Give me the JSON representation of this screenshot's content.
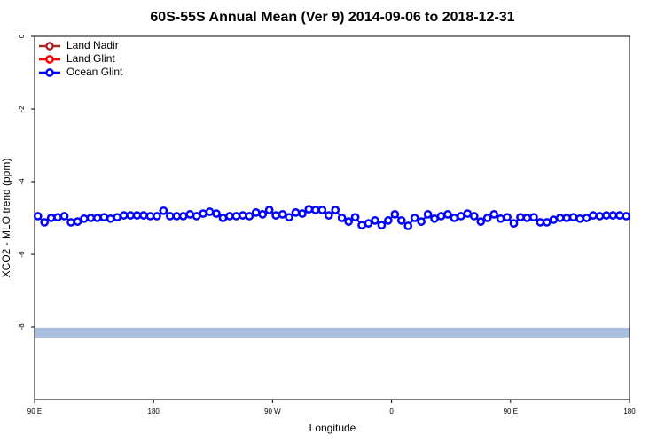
{
  "chart_data": {
    "type": "line",
    "title": "60S-55S Annual Mean (Ver 9)   2014-09-06 to 2018-12-31",
    "x_label": "Longitude",
    "y_label": "XCO2 - MLO trend (ppm)",
    "xlim": [
      90,
      540
    ],
    "ylim": [
      -10,
      0
    ],
    "xticks": [
      {
        "value": 90,
        "label": "90 E"
      },
      180,
      {
        "value": 270,
        "label": "90 W"
      },
      {
        "value": 360,
        "label": "0"
      },
      {
        "value": 450,
        "label": "90 E"
      },
      {
        "value": 540,
        "label": "180"
      }
    ],
    "yticks": [
      0,
      -2,
      -4,
      -6,
      -8
    ],
    "legend": "top-left",
    "shaded_band": {
      "ylim": [
        -8.29,
        -8.02
      ],
      "color": "#a9bfe0"
    },
    "x": [
      92.5,
      97.5,
      102.5,
      107.5,
      112.5,
      117.5,
      122.5,
      127.5,
      132.5,
      137.5,
      142.5,
      147.5,
      152.5,
      157.5,
      162.5,
      167.5,
      172.5,
      177.5,
      182.5,
      187.5,
      192.5,
      197.5,
      202.5,
      207.5,
      212.5,
      217.5,
      222.5,
      227.5,
      232.5,
      237.5,
      242.5,
      247.5,
      252.5,
      257.5,
      262.5,
      267.5,
      272.5,
      277.5,
      282.5,
      287.5,
      292.5,
      297.5,
      302.5,
      307.5,
      312.5,
      317.5,
      322.5,
      327.5,
      332.5,
      337.5,
      342.5,
      347.5,
      352.5,
      357.5,
      362.5,
      367.5,
      372.5,
      377.5,
      382.5,
      387.5,
      392.5,
      397.5,
      402.5,
      407.5,
      412.5,
      417.5,
      422.5,
      427.5,
      432.5,
      437.5,
      442.5,
      447.5,
      452.5,
      457.5,
      462.5,
      467.5,
      472.5,
      477.5,
      482.5,
      487.5,
      492.5,
      497.5,
      502.5,
      507.5,
      512.5,
      517.5,
      522.5,
      527.5,
      532.5,
      537.5
    ],
    "series": [
      {
        "name": "Land Nadir",
        "color": "#a52a2a",
        "values": [
          null,
          null,
          null,
          null,
          null,
          null,
          null,
          null,
          null,
          null,
          null,
          null,
          null,
          null,
          null,
          null,
          null,
          null,
          null,
          null,
          null,
          null,
          null,
          null,
          null,
          null,
          null,
          null,
          null,
          null,
          null,
          null,
          null,
          null,
          null,
          null,
          null,
          null,
          null,
          null,
          null,
          null,
          null,
          null,
          null,
          null,
          null,
          null,
          null,
          null,
          null,
          null,
          null,
          null,
          null,
          null,
          null,
          null,
          null,
          null,
          null,
          null,
          null,
          null,
          null,
          null,
          null,
          null,
          null,
          null,
          null,
          null,
          null,
          null,
          null,
          null,
          null,
          null,
          null,
          null,
          null,
          null,
          null,
          null,
          null,
          null,
          null,
          null,
          null,
          null
        ]
      },
      {
        "name": "Land Glint",
        "color": "#ff0000",
        "values": [
          null,
          null,
          null,
          null,
          null,
          null,
          null,
          null,
          null,
          null,
          null,
          null,
          null,
          null,
          null,
          null,
          null,
          null,
          null,
          null,
          null,
          null,
          null,
          null,
          null,
          null,
          null,
          null,
          null,
          null,
          null,
          null,
          null,
          null,
          null,
          null,
          null,
          null,
          null,
          null,
          null,
          null,
          null,
          null,
          null,
          null,
          null,
          null,
          null,
          null,
          null,
          null,
          null,
          null,
          null,
          null,
          null,
          null,
          null,
          null,
          null,
          null,
          null,
          null,
          null,
          null,
          null,
          null,
          null,
          null,
          null,
          null,
          null,
          null,
          null,
          null,
          null,
          null,
          null,
          null,
          null,
          null,
          null,
          null,
          null,
          null,
          null,
          null,
          null,
          null
        ]
      },
      {
        "name": "Ocean Glint",
        "color": "#0000ff",
        "values": [
          -4.95,
          -5.12,
          -5.0,
          -4.98,
          -4.95,
          -5.12,
          -5.1,
          -5.02,
          -5.0,
          -5.0,
          -4.98,
          -5.02,
          -4.98,
          -4.93,
          -4.93,
          -4.93,
          -4.93,
          -4.95,
          -4.95,
          -4.8,
          -4.95,
          -4.95,
          -4.95,
          -4.9,
          -4.95,
          -4.88,
          -4.83,
          -4.88,
          -5.0,
          -4.95,
          -4.95,
          -4.93,
          -4.95,
          -4.85,
          -4.9,
          -4.78,
          -4.93,
          -4.9,
          -4.98,
          -4.85,
          -4.88,
          -4.76,
          -4.78,
          -4.78,
          -4.93,
          -4.78,
          -5.0,
          -5.1,
          -4.98,
          -5.2,
          -5.15,
          -5.07,
          -5.2,
          -5.07,
          -4.9,
          -5.07,
          -5.22,
          -5.0,
          -5.1,
          -4.9,
          -5.02,
          -4.95,
          -4.9,
          -5.0,
          -4.95,
          -4.88,
          -4.95,
          -5.1,
          -5.0,
          -4.9,
          -5.02,
          -4.98,
          -5.15,
          -4.98,
          -5.0,
          -4.98,
          -5.12,
          -5.12,
          -5.05,
          -5.0,
          -5.0,
          -4.98,
          -5.02,
          -5.0,
          -4.93,
          -4.95,
          -4.93,
          -4.93,
          -4.93,
          -4.95
        ]
      }
    ]
  }
}
